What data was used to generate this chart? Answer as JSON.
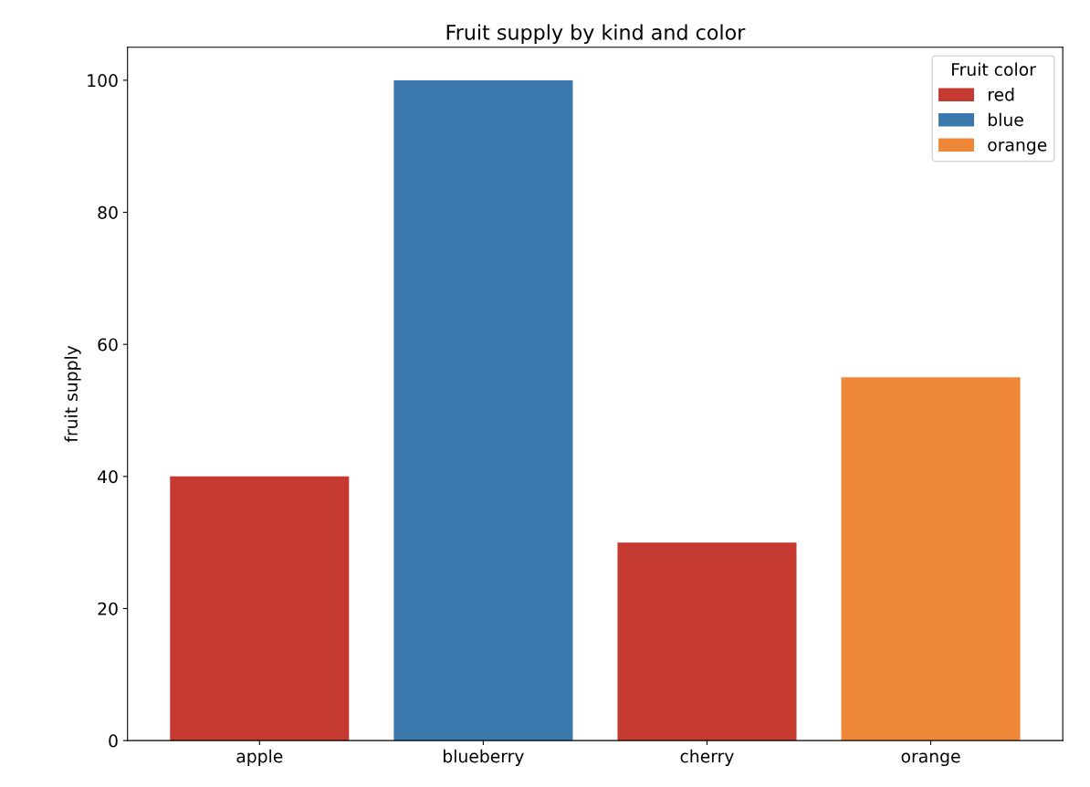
{
  "chart_data": {
    "type": "bar",
    "title": "Fruit supply by kind and color",
    "ylabel": "fruit supply",
    "legend_title": "Fruit color",
    "categories": [
      "apple",
      "blueberry",
      "cherry",
      "orange"
    ],
    "series": [
      {
        "name": "red",
        "color": "#c43a31",
        "values": [
          40,
          null,
          30,
          null
        ]
      },
      {
        "name": "blue",
        "color": "#3a78ad",
        "values": [
          null,
          100,
          null,
          null
        ]
      },
      {
        "name": "orange",
        "color": "#ee8838",
        "values": [
          null,
          null,
          null,
          55
        ]
      }
    ],
    "ylim": [
      0,
      105
    ],
    "yticks": [
      0,
      20,
      40,
      60,
      80,
      100
    ],
    "grid": false,
    "legend": "top right"
  }
}
